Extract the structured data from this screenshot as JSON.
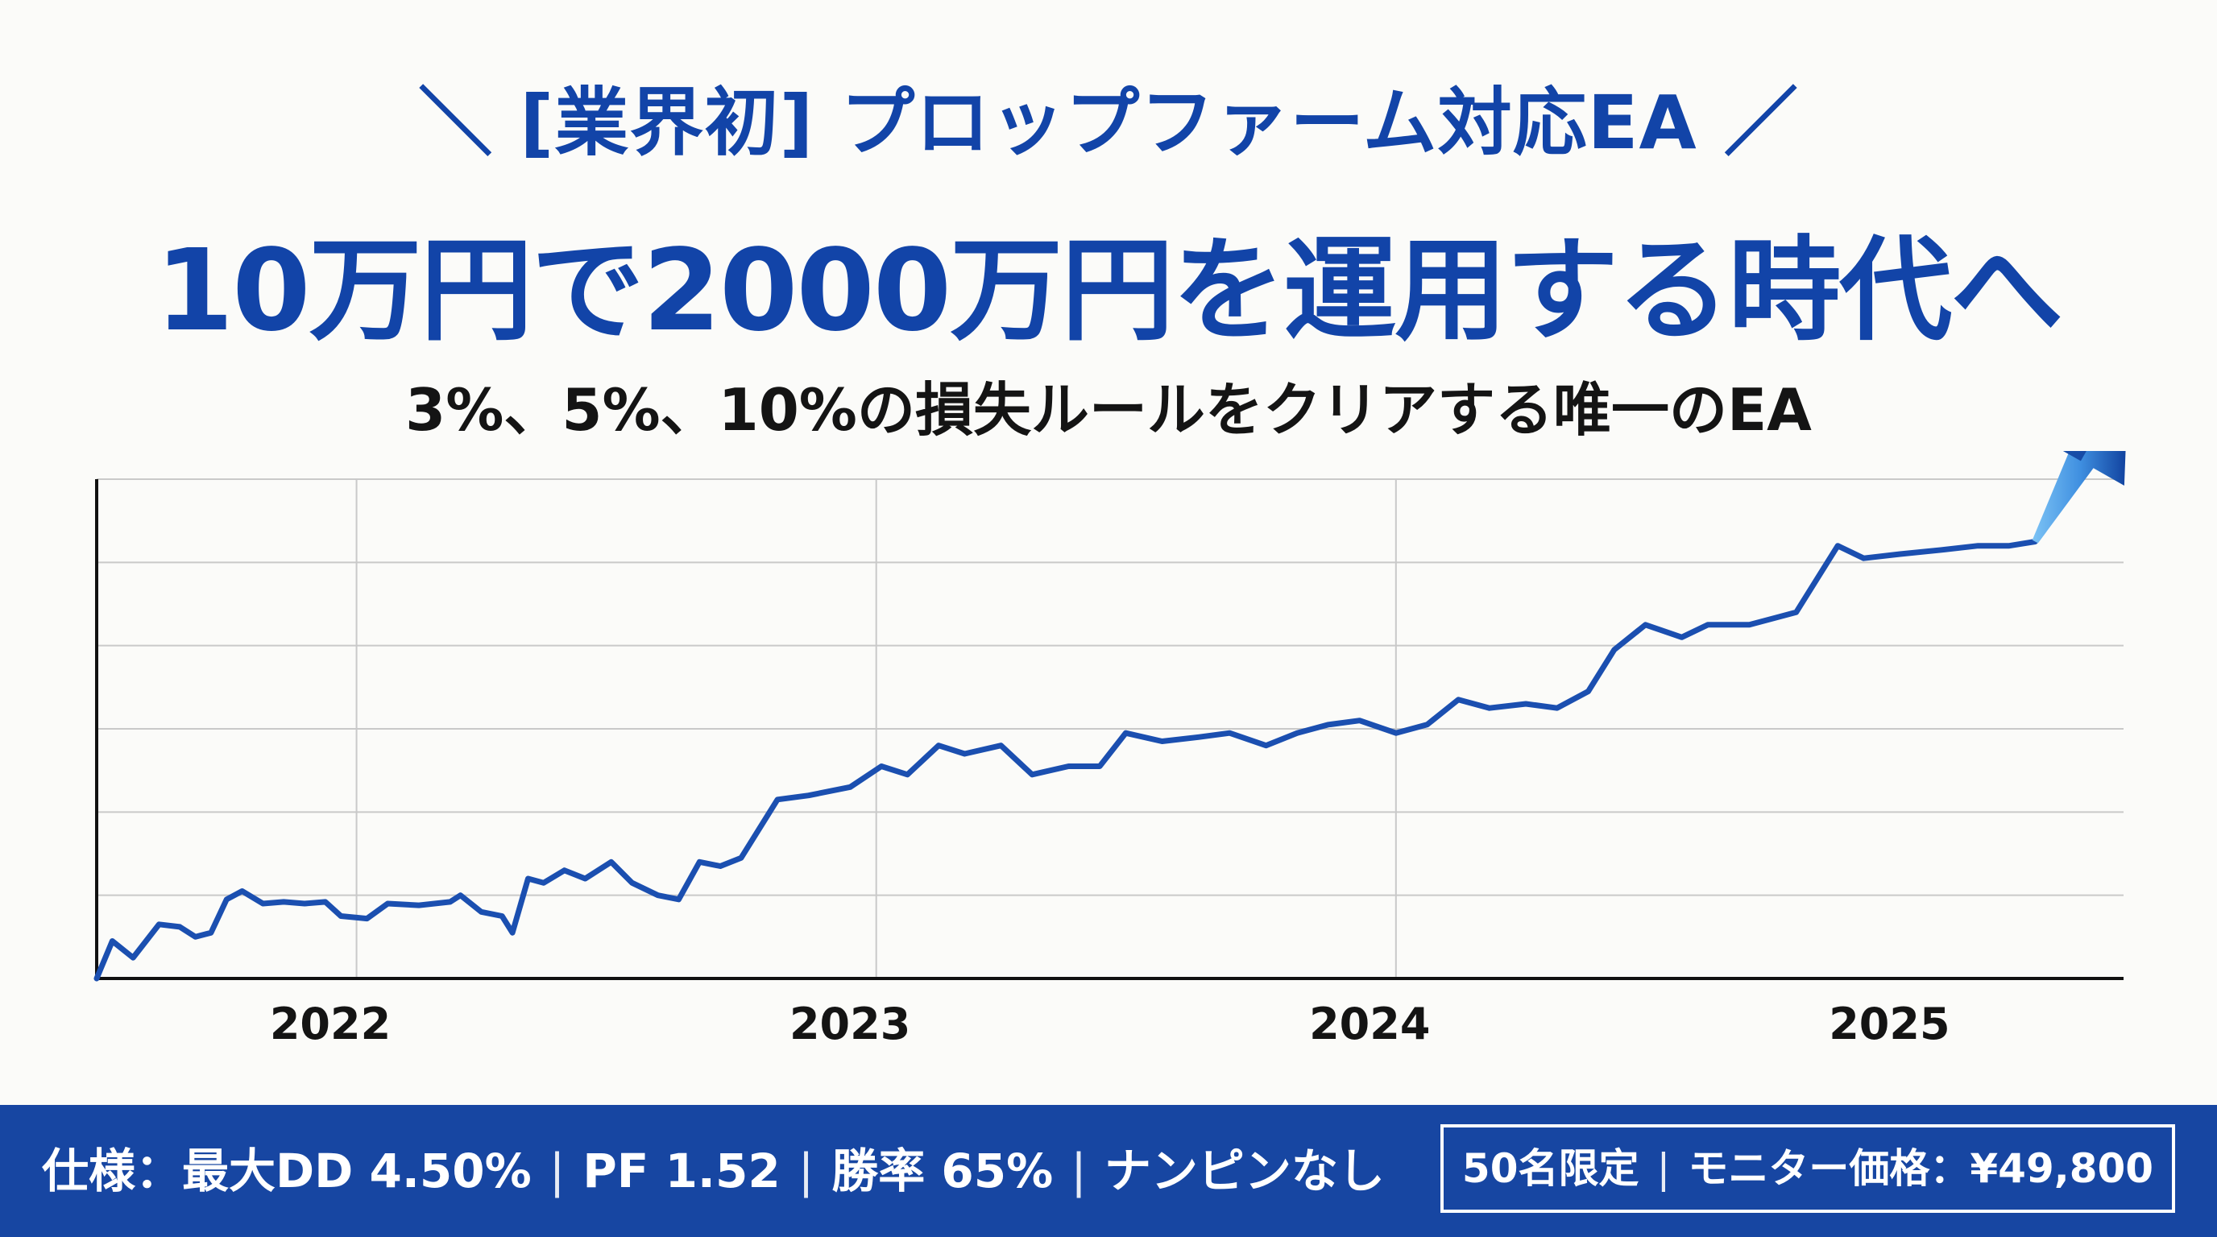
{
  "header": {
    "title_line1": "＼ [業界初] プロップファーム対応EA ／",
    "title_line2": "10万円で2000万円を運用する時代へ",
    "subtitle": "3%、5%、10%の損失ルールをクリアする唯一のEA"
  },
  "chart_data": {
    "type": "line",
    "categories": [
      "2022",
      "2023",
      "2024",
      "2025"
    ],
    "x_range": [
      2022.0,
      2025.9
    ],
    "y_range": [
      0,
      6
    ],
    "grid": true,
    "series": [
      {
        "values": [
          [
            2022.0,
            0.0
          ],
          [
            2022.03,
            0.45
          ],
          [
            2022.07,
            0.25
          ],
          [
            2022.12,
            0.65
          ],
          [
            2022.16,
            0.62
          ],
          [
            2022.19,
            0.5
          ],
          [
            2022.22,
            0.55
          ],
          [
            2022.25,
            0.95
          ],
          [
            2022.28,
            1.05
          ],
          [
            2022.32,
            0.9
          ],
          [
            2022.36,
            0.92
          ],
          [
            2022.4,
            0.9
          ],
          [
            2022.44,
            0.92
          ],
          [
            2022.47,
            0.75
          ],
          [
            2022.52,
            0.72
          ],
          [
            2022.56,
            0.9
          ],
          [
            2022.62,
            0.88
          ],
          [
            2022.68,
            0.92
          ],
          [
            2022.7,
            1.0
          ],
          [
            2022.74,
            0.8
          ],
          [
            2022.78,
            0.75
          ],
          [
            2022.8,
            0.55
          ],
          [
            2022.83,
            1.2
          ],
          [
            2022.86,
            1.15
          ],
          [
            2022.9,
            1.3
          ],
          [
            2022.94,
            1.2
          ],
          [
            2022.99,
            1.4
          ],
          [
            2023.03,
            1.15
          ],
          [
            2023.08,
            1.0
          ],
          [
            2023.12,
            0.95
          ],
          [
            2023.16,
            1.4
          ],
          [
            2023.2,
            1.35
          ],
          [
            2023.24,
            1.45
          ],
          [
            2023.31,
            2.15
          ],
          [
            2023.37,
            2.2
          ],
          [
            2023.45,
            2.3
          ],
          [
            2023.51,
            2.55
          ],
          [
            2023.56,
            2.45
          ],
          [
            2023.62,
            2.8
          ],
          [
            2023.67,
            2.7
          ],
          [
            2023.74,
            2.8
          ],
          [
            2023.8,
            2.45
          ],
          [
            2023.87,
            2.55
          ],
          [
            2023.93,
            2.55
          ],
          [
            2023.98,
            2.95
          ],
          [
            2024.05,
            2.85
          ],
          [
            2024.12,
            2.9
          ],
          [
            2024.18,
            2.95
          ],
          [
            2024.25,
            2.8
          ],
          [
            2024.31,
            2.95
          ],
          [
            2024.37,
            3.05
          ],
          [
            2024.43,
            3.1
          ],
          [
            2024.5,
            2.95
          ],
          [
            2024.56,
            3.05
          ],
          [
            2024.62,
            3.35
          ],
          [
            2024.68,
            3.25
          ],
          [
            2024.75,
            3.3
          ],
          [
            2024.81,
            3.25
          ],
          [
            2024.87,
            3.45
          ],
          [
            2024.92,
            3.95
          ],
          [
            2024.98,
            4.25
          ],
          [
            2025.05,
            4.1
          ],
          [
            2025.1,
            4.25
          ],
          [
            2025.18,
            4.25
          ],
          [
            2025.27,
            4.4
          ],
          [
            2025.35,
            5.2
          ],
          [
            2025.4,
            5.05
          ],
          [
            2025.47,
            5.1
          ],
          [
            2025.55,
            5.15
          ],
          [
            2025.62,
            5.2
          ],
          [
            2025.68,
            5.2
          ],
          [
            2025.73,
            5.25
          ]
        ]
      }
    ]
  },
  "footer": {
    "spec_label": "仕様：最大DD 4.50%",
    "spec_pf": "PF 1.52",
    "spec_winrate": "勝率 65%",
    "spec_no_nanpin": "ナンピンなし",
    "offer_limited": "50名限定",
    "offer_price": "モニター価格：¥49,800"
  },
  "colors": {
    "title": "#1244a8",
    "line": "#1b4fb0",
    "footer_bg": "#1746a2",
    "arrow_light": "#4aa6ee",
    "arrow_dark": "#0f3f9c"
  }
}
